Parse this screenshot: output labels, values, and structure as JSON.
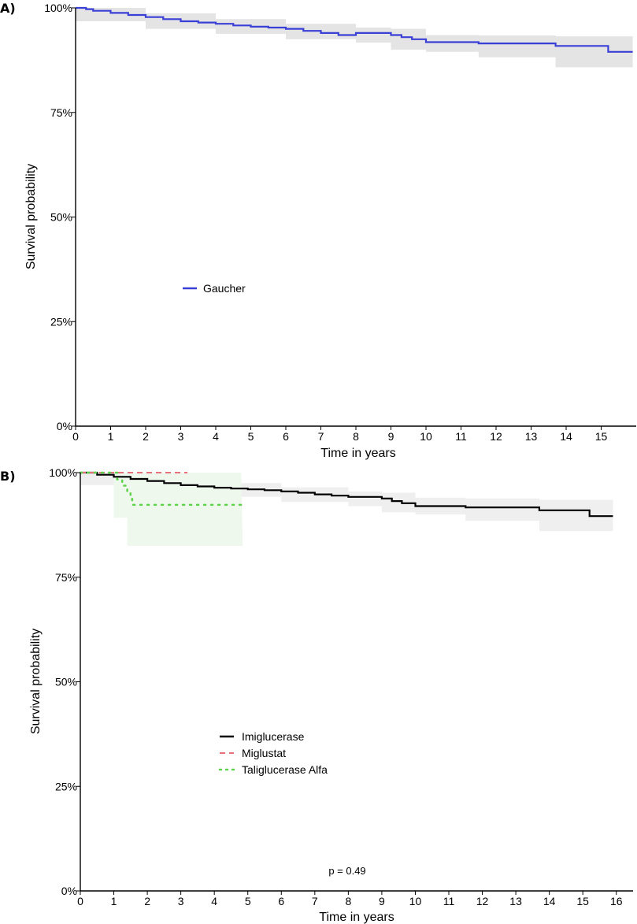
{
  "chart_data": [
    {
      "panel": "A)",
      "type": "line",
      "subtype": "kaplan-meier survival curve",
      "xlabel": "Time in years",
      "ylabel": "Survival probability",
      "xlim": [
        0,
        16
      ],
      "ylim": [
        0,
        1
      ],
      "x_ticks": [
        0,
        1,
        2,
        3,
        4,
        5,
        6,
        7,
        8,
        9,
        10,
        11,
        12,
        13,
        14,
        15
      ],
      "y_ticks": [
        0,
        0.25,
        0.5,
        0.75,
        1.0
      ],
      "y_tick_labels": [
        "0%",
        "25%",
        "50%",
        "75%",
        "100%"
      ],
      "legend_position": "middle-left",
      "series": [
        {
          "name": "Gaucher",
          "color": "#3a3fd6",
          "style": "solid",
          "ci_color": "#e4e4e4",
          "points": [
            [
              0,
              1.0
            ],
            [
              0.3,
              0.997
            ],
            [
              0.5,
              0.993
            ],
            [
              1,
              0.988
            ],
            [
              1.5,
              0.983
            ],
            [
              2,
              0.978
            ],
            [
              2.5,
              0.973
            ],
            [
              3,
              0.968
            ],
            [
              3.5,
              0.965
            ],
            [
              4,
              0.962
            ],
            [
              4.5,
              0.958
            ],
            [
              5,
              0.955
            ],
            [
              5.5,
              0.953
            ],
            [
              6,
              0.95
            ],
            [
              6.5,
              0.945
            ],
            [
              7,
              0.94
            ],
            [
              7.5,
              0.935
            ],
            [
              8,
              0.94
            ],
            [
              9,
              0.935
            ],
            [
              9.3,
              0.93
            ],
            [
              9.6,
              0.925
            ],
            [
              10,
              0.918
            ],
            [
              11,
              0.918
            ],
            [
              11.5,
              0.915
            ],
            [
              13.6,
              0.915
            ],
            [
              13.7,
              0.909
            ],
            [
              15.2,
              0.909
            ],
            [
              15.2,
              0.895
            ],
            [
              15.9,
              0.895
            ]
          ],
          "ci_upper": [
            [
              0,
              1.0
            ],
            [
              2,
              0.987
            ],
            [
              4,
              0.973
            ],
            [
              6,
              0.962
            ],
            [
              8,
              0.953
            ],
            [
              9,
              0.95
            ],
            [
              10,
              0.935
            ],
            [
              11.5,
              0.934
            ],
            [
              13.7,
              0.932
            ],
            [
              15.2,
              0.932
            ],
            [
              15.9,
              0.932
            ]
          ],
          "ci_lower": [
            [
              0,
              1.0
            ],
            [
              2,
              0.968
            ],
            [
              4,
              0.95
            ],
            [
              6,
              0.938
            ],
            [
              8,
              0.925
            ],
            [
              9,
              0.917
            ],
            [
              10,
              0.9
            ],
            [
              11.5,
              0.895
            ],
            [
              13.7,
              0.882
            ],
            [
              15.2,
              0.858
            ],
            [
              15.9,
              0.858
            ]
          ]
        }
      ]
    },
    {
      "panel": "B)",
      "type": "line",
      "subtype": "kaplan-meier survival curve",
      "xlabel": "Time in years",
      "ylabel": "Survival probability",
      "xlim": [
        0,
        16.5
      ],
      "ylim": [
        0,
        1
      ],
      "x_ticks": [
        0,
        1,
        2,
        3,
        4,
        5,
        6,
        7,
        8,
        9,
        10,
        11,
        12,
        13,
        14,
        15,
        16
      ],
      "y_ticks": [
        0,
        0.25,
        0.5,
        0.75,
        1.0
      ],
      "y_tick_labels": [
        "0%",
        "25%",
        "50%",
        "75%",
        "100%"
      ],
      "legend_position": "middle-left",
      "annotation": "p = 0.49",
      "series": [
        {
          "name": "Imiglucerase",
          "color": "#000000",
          "style": "solid",
          "ci_color": "#efefef",
          "points": [
            [
              0,
              1.0
            ],
            [
              0.5,
              0.995
            ],
            [
              1,
              0.99
            ],
            [
              1.5,
              0.985
            ],
            [
              2,
              0.98
            ],
            [
              2.5,
              0.975
            ],
            [
              3,
              0.97
            ],
            [
              3.5,
              0.967
            ],
            [
              4,
              0.964
            ],
            [
              4.5,
              0.962
            ],
            [
              5,
              0.96
            ],
            [
              5.5,
              0.958
            ],
            [
              6,
              0.955
            ],
            [
              6.5,
              0.952
            ],
            [
              7,
              0.948
            ],
            [
              7.5,
              0.945
            ],
            [
              8,
              0.942
            ],
            [
              9,
              0.938
            ],
            [
              9.3,
              0.932
            ],
            [
              9.6,
              0.927
            ],
            [
              10,
              0.92
            ],
            [
              11,
              0.92
            ],
            [
              11.5,
              0.917
            ],
            [
              13.6,
              0.917
            ],
            [
              13.7,
              0.91
            ],
            [
              15.2,
              0.91
            ],
            [
              15.2,
              0.896
            ],
            [
              15.9,
              0.896
            ]
          ],
          "ci_upper": [
            [
              0,
              1.0
            ],
            [
              2,
              0.988
            ],
            [
              4,
              0.975
            ],
            [
              6,
              0.965
            ],
            [
              8,
              0.955
            ],
            [
              9,
              0.952
            ],
            [
              10,
              0.94
            ],
            [
              11.5,
              0.938
            ],
            [
              13.7,
              0.935
            ],
            [
              15.2,
              0.935
            ],
            [
              15.9,
              0.935
            ]
          ],
          "ci_lower": [
            [
              0,
              1.0
            ],
            [
              2,
              0.97
            ],
            [
              4,
              0.952
            ],
            [
              6,
              0.942
            ],
            [
              8,
              0.93
            ],
            [
              9,
              0.92
            ],
            [
              10,
              0.905
            ],
            [
              11.5,
              0.9
            ],
            [
              13.7,
              0.885
            ],
            [
              15.2,
              0.86
            ],
            [
              15.9,
              0.86
            ]
          ]
        },
        {
          "name": "Miglustat",
          "color": "#e8707a",
          "style": "dashed",
          "points": [
            [
              0,
              1.0
            ],
            [
              3.2,
              1.0
            ]
          ]
        },
        {
          "name": "Taliglucerase Alfa",
          "color": "#5fd14a",
          "style": "dotted",
          "ci_color": "#eef8ec",
          "points": [
            [
              0,
              1.0
            ],
            [
              1.0,
              1.0
            ],
            [
              1.1,
              0.984
            ],
            [
              1.25,
              0.969
            ],
            [
              1.4,
              0.953
            ],
            [
              1.5,
              0.937
            ],
            [
              1.55,
              0.923
            ],
            [
              4.8,
              0.923
            ]
          ],
          "ci_upper": [
            [
              1.0,
              1.0
            ],
            [
              4.8,
              1.0
            ]
          ],
          "ci_lower": [
            [
              1.0,
              0.892
            ],
            [
              1.4,
              0.892
            ],
            [
              1.45,
              0.825
            ],
            [
              4.85,
              0.825
            ]
          ]
        }
      ]
    }
  ]
}
